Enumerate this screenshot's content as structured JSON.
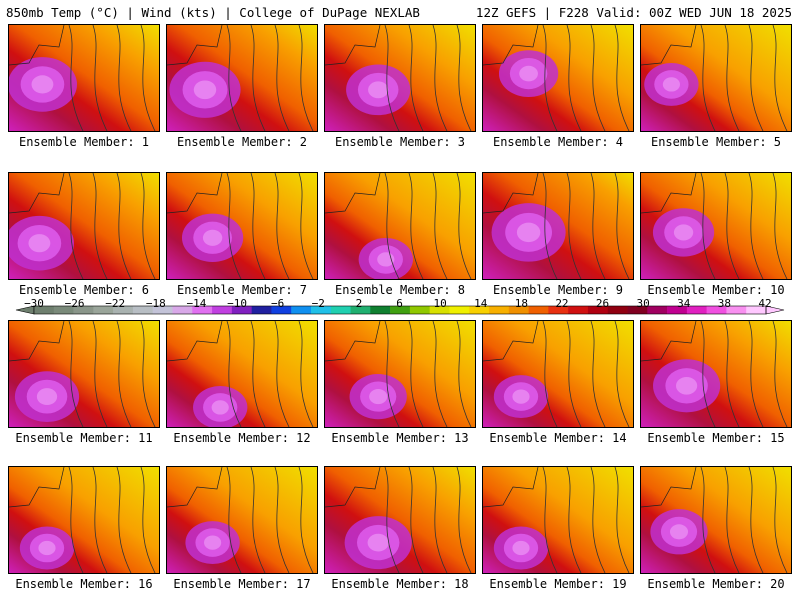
{
  "header": {
    "left": "850mb Temp (°C) | Wind (kts) | College of DuPage NEXLAB",
    "right": "12Z GEFS | F228 Valid: 00Z WED JUN 18 2025"
  },
  "members": [
    {
      "label": "Ensemble Member: 1",
      "warm": 0.7,
      "center": [
        0.22,
        0.55
      ]
    },
    {
      "label": "Ensemble Member: 2",
      "warm": 0.72,
      "center": [
        0.25,
        0.6
      ]
    },
    {
      "label": "Ensemble Member: 3",
      "warm": 0.65,
      "center": [
        0.35,
        0.6
      ]
    },
    {
      "label": "Ensemble Member: 4",
      "warm": 0.6,
      "center": [
        0.3,
        0.45
      ]
    },
    {
      "label": "Ensemble Member: 5",
      "warm": 0.55,
      "center": [
        0.2,
        0.55
      ]
    },
    {
      "label": "Ensemble Member: 6",
      "warm": 0.7,
      "center": [
        0.2,
        0.65
      ]
    },
    {
      "label": "Ensemble Member: 7",
      "warm": 0.62,
      "center": [
        0.3,
        0.6
      ]
    },
    {
      "label": "Ensemble Member: 8",
      "warm": 0.55,
      "center": [
        0.4,
        0.8
      ]
    },
    {
      "label": "Ensemble Member: 9",
      "warm": 0.75,
      "center": [
        0.3,
        0.55
      ]
    },
    {
      "label": "Ensemble Member: 10",
      "warm": 0.62,
      "center": [
        0.28,
        0.55
      ]
    },
    {
      "label": "Ensemble Member: 11",
      "warm": 0.65,
      "center": [
        0.25,
        0.7
      ]
    },
    {
      "label": "Ensemble Member: 12",
      "warm": 0.55,
      "center": [
        0.35,
        0.8
      ]
    },
    {
      "label": "Ensemble Member: 13",
      "warm": 0.58,
      "center": [
        0.35,
        0.7
      ]
    },
    {
      "label": "Ensemble Member: 14",
      "warm": 0.55,
      "center": [
        0.25,
        0.7
      ]
    },
    {
      "label": "Ensemble Member: 15",
      "warm": 0.68,
      "center": [
        0.3,
        0.6
      ]
    },
    {
      "label": "Ensemble Member: 16",
      "warm": 0.55,
      "center": [
        0.25,
        0.75
      ]
    },
    {
      "label": "Ensemble Member: 17",
      "warm": 0.55,
      "center": [
        0.3,
        0.7
      ]
    },
    {
      "label": "Ensemble Member: 18",
      "warm": 0.68,
      "center": [
        0.35,
        0.7
      ]
    },
    {
      "label": "Ensemble Member: 19",
      "warm": 0.55,
      "center": [
        0.25,
        0.75
      ]
    },
    {
      "label": "Ensemble Member: 20",
      "warm": 0.58,
      "center": [
        0.25,
        0.6
      ]
    }
  ],
  "colorbar": {
    "unit": "°C",
    "ticks": [
      "−30",
      "−26",
      "−22",
      "−18",
      "−14",
      "−10",
      "−6",
      "−2",
      "2",
      "6",
      "10",
      "14",
      "18",
      "22",
      "26",
      "30",
      "34",
      "38",
      "42"
    ],
    "colors": [
      "#6e7f6e",
      "#7a8a7a",
      "#8a968a",
      "#9aa59a",
      "#a9b2b0",
      "#b8bec4",
      "#c3c3d8",
      "#d8a8e8",
      "#e070f0",
      "#c040e0",
      "#8020c0",
      "#2020a0",
      "#1040e0",
      "#1090f0",
      "#20c0e8",
      "#20d0b0",
      "#20b070",
      "#108030",
      "#40a010",
      "#90c800",
      "#d8e000",
      "#f0f000",
      "#f8d000",
      "#f8b000",
      "#f09000",
      "#f06000",
      "#e83010",
      "#d01010",
      "#b00010",
      "#900010",
      "#800020",
      "#a00060",
      "#c00090",
      "#e020c0",
      "#f050e0",
      "#f890f0",
      "#ffc8ff"
    ]
  }
}
